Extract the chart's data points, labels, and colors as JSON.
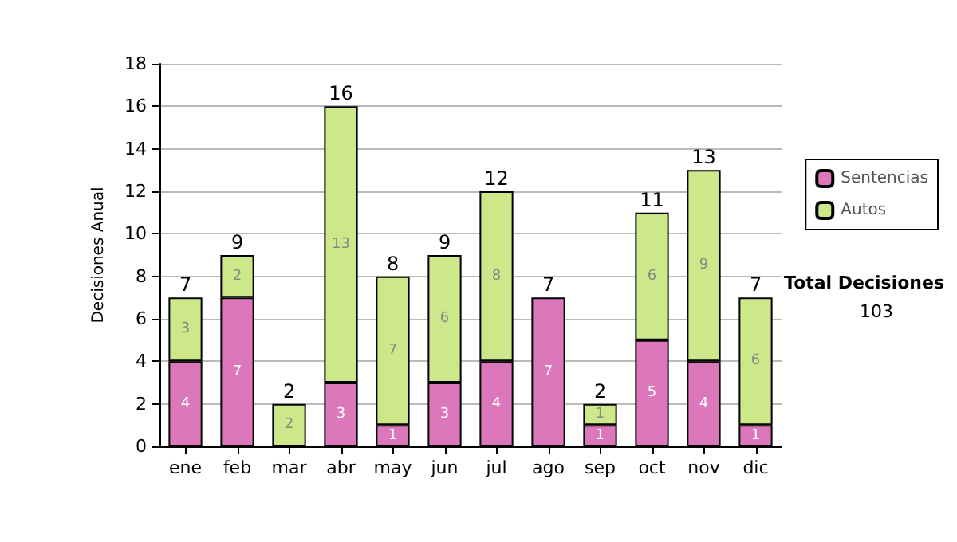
{
  "chart_data": {
    "type": "bar",
    "stacked": true,
    "ylabel": "Decisiones Anual",
    "categories": [
      "ene",
      "feb",
      "mar",
      "abr",
      "may",
      "jun",
      "jul",
      "ago",
      "sep",
      "oct",
      "nov",
      "dic"
    ],
    "series": [
      {
        "name": "Sentencias",
        "color": "#dd77bb",
        "values": [
          4,
          7,
          0,
          3,
          1,
          3,
          4,
          7,
          1,
          5,
          4,
          1
        ],
        "value_labels": [
          "4",
          "7",
          null,
          "3",
          "1",
          "3",
          "4",
          "7",
          "1",
          "5",
          "4",
          "1"
        ]
      },
      {
        "name": "Autos",
        "color": "#cce88a",
        "values": [
          3,
          2,
          2,
          13,
          7,
          6,
          8,
          0,
          1,
          6,
          9,
          6
        ],
        "value_labels": [
          "3",
          "2",
          "2",
          "13",
          "7",
          "6",
          "8",
          null,
          "1",
          "6",
          "9",
          "6"
        ]
      }
    ],
    "totals": [
      "7",
      "9",
      "2",
      "16",
      "8",
      "9",
      "12",
      "7",
      "2",
      "11",
      "13",
      "7"
    ],
    "ylim": [
      0,
      18
    ],
    "yticks": [
      0,
      2,
      4,
      6,
      8,
      10,
      12,
      14,
      16,
      18
    ],
    "grid": "y",
    "legend": "right",
    "annotations": [
      "Total Decisiones",
      "103"
    ]
  }
}
